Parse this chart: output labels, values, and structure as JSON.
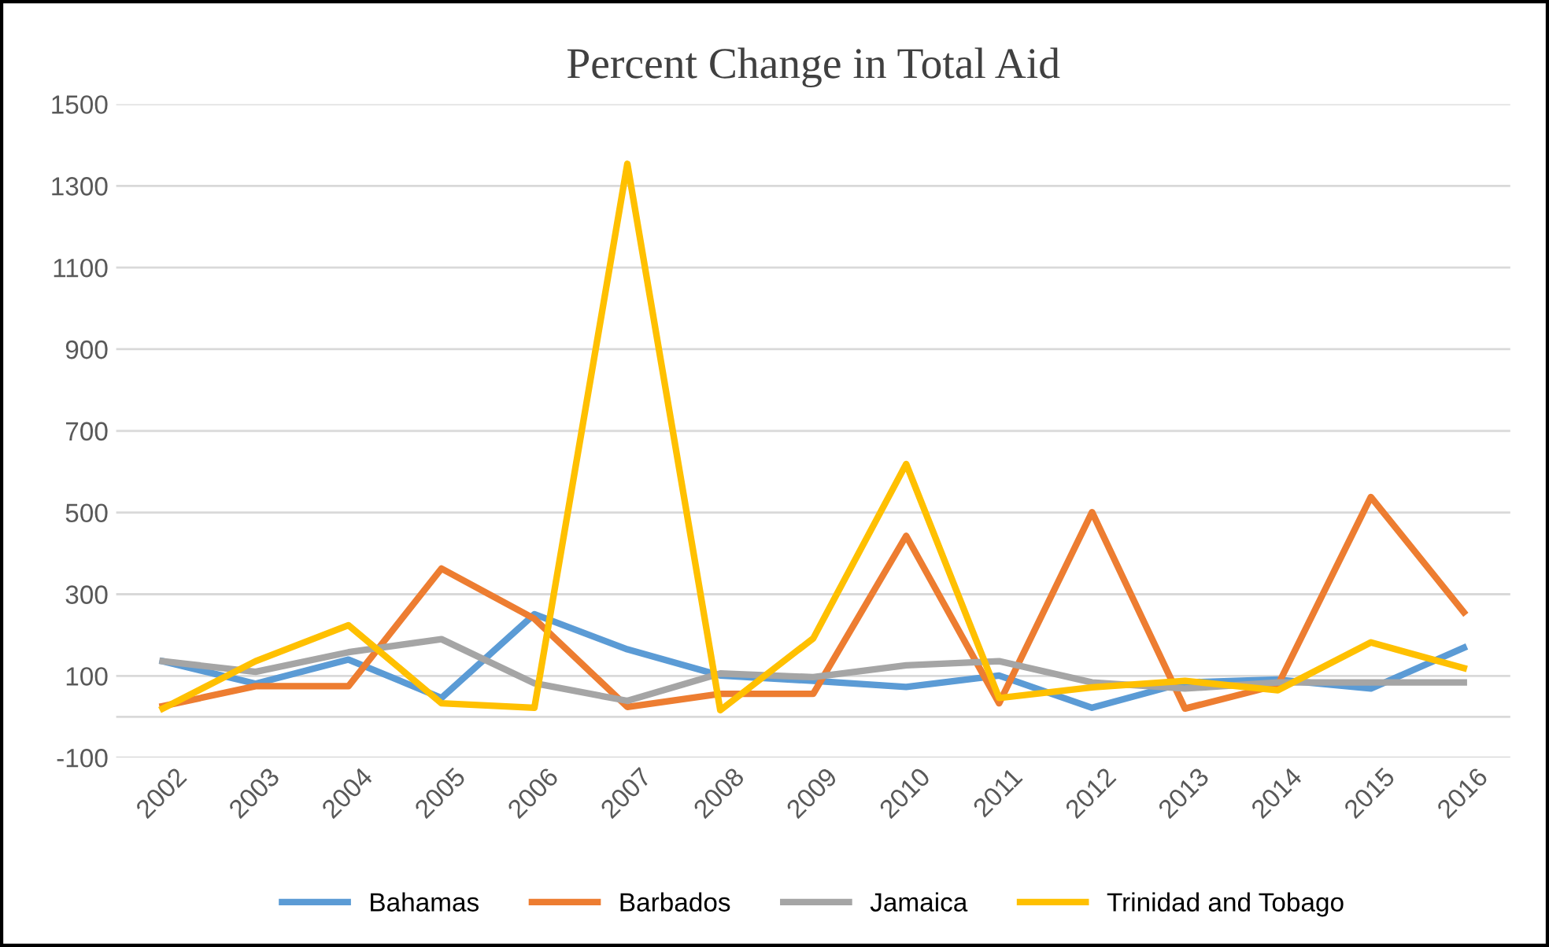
{
  "chart_data": {
    "type": "line",
    "title": "Percent Change in Total Aid",
    "categories": [
      "2002",
      "2003",
      "2004",
      "2005",
      "2006",
      "2007",
      "2008",
      "2009",
      "2010",
      "2011",
      "2012",
      "2013",
      "2014",
      "2015",
      "2016"
    ],
    "series": [
      {
        "name": "Bahamas",
        "color": "#5b9bd5",
        "values": [
          136,
          81,
          140,
          46,
          251,
          165,
          101,
          88,
          73,
          101,
          22,
          84,
          91,
          69,
          169
        ]
      },
      {
        "name": "Barbados",
        "color": "#ed7d31",
        "values": [
          26,
          75,
          75,
          363,
          240,
          24,
          56,
          56,
          443,
          33,
          501,
          20,
          78,
          538,
          256
        ]
      },
      {
        "name": "Jamaica",
        "color": "#a5a5a5",
        "values": [
          136,
          110,
          158,
          190,
          82,
          39,
          106,
          97,
          126,
          136,
          84,
          69,
          84,
          84,
          84
        ]
      },
      {
        "name": "Trinidad and Tobago",
        "color": "#ffc000",
        "values": [
          20,
          136,
          224,
          33,
          22,
          1354,
          16,
          192,
          619,
          46,
          72,
          88,
          65,
          182,
          119
        ]
      }
    ],
    "ylim": [
      -100,
      1500
    ],
    "yticks": [
      -100,
      100,
      300,
      500,
      700,
      900,
      1100,
      1300,
      1500
    ],
    "grid": "y",
    "legend": "bottom",
    "marker": "none",
    "line_style": "solid"
  }
}
